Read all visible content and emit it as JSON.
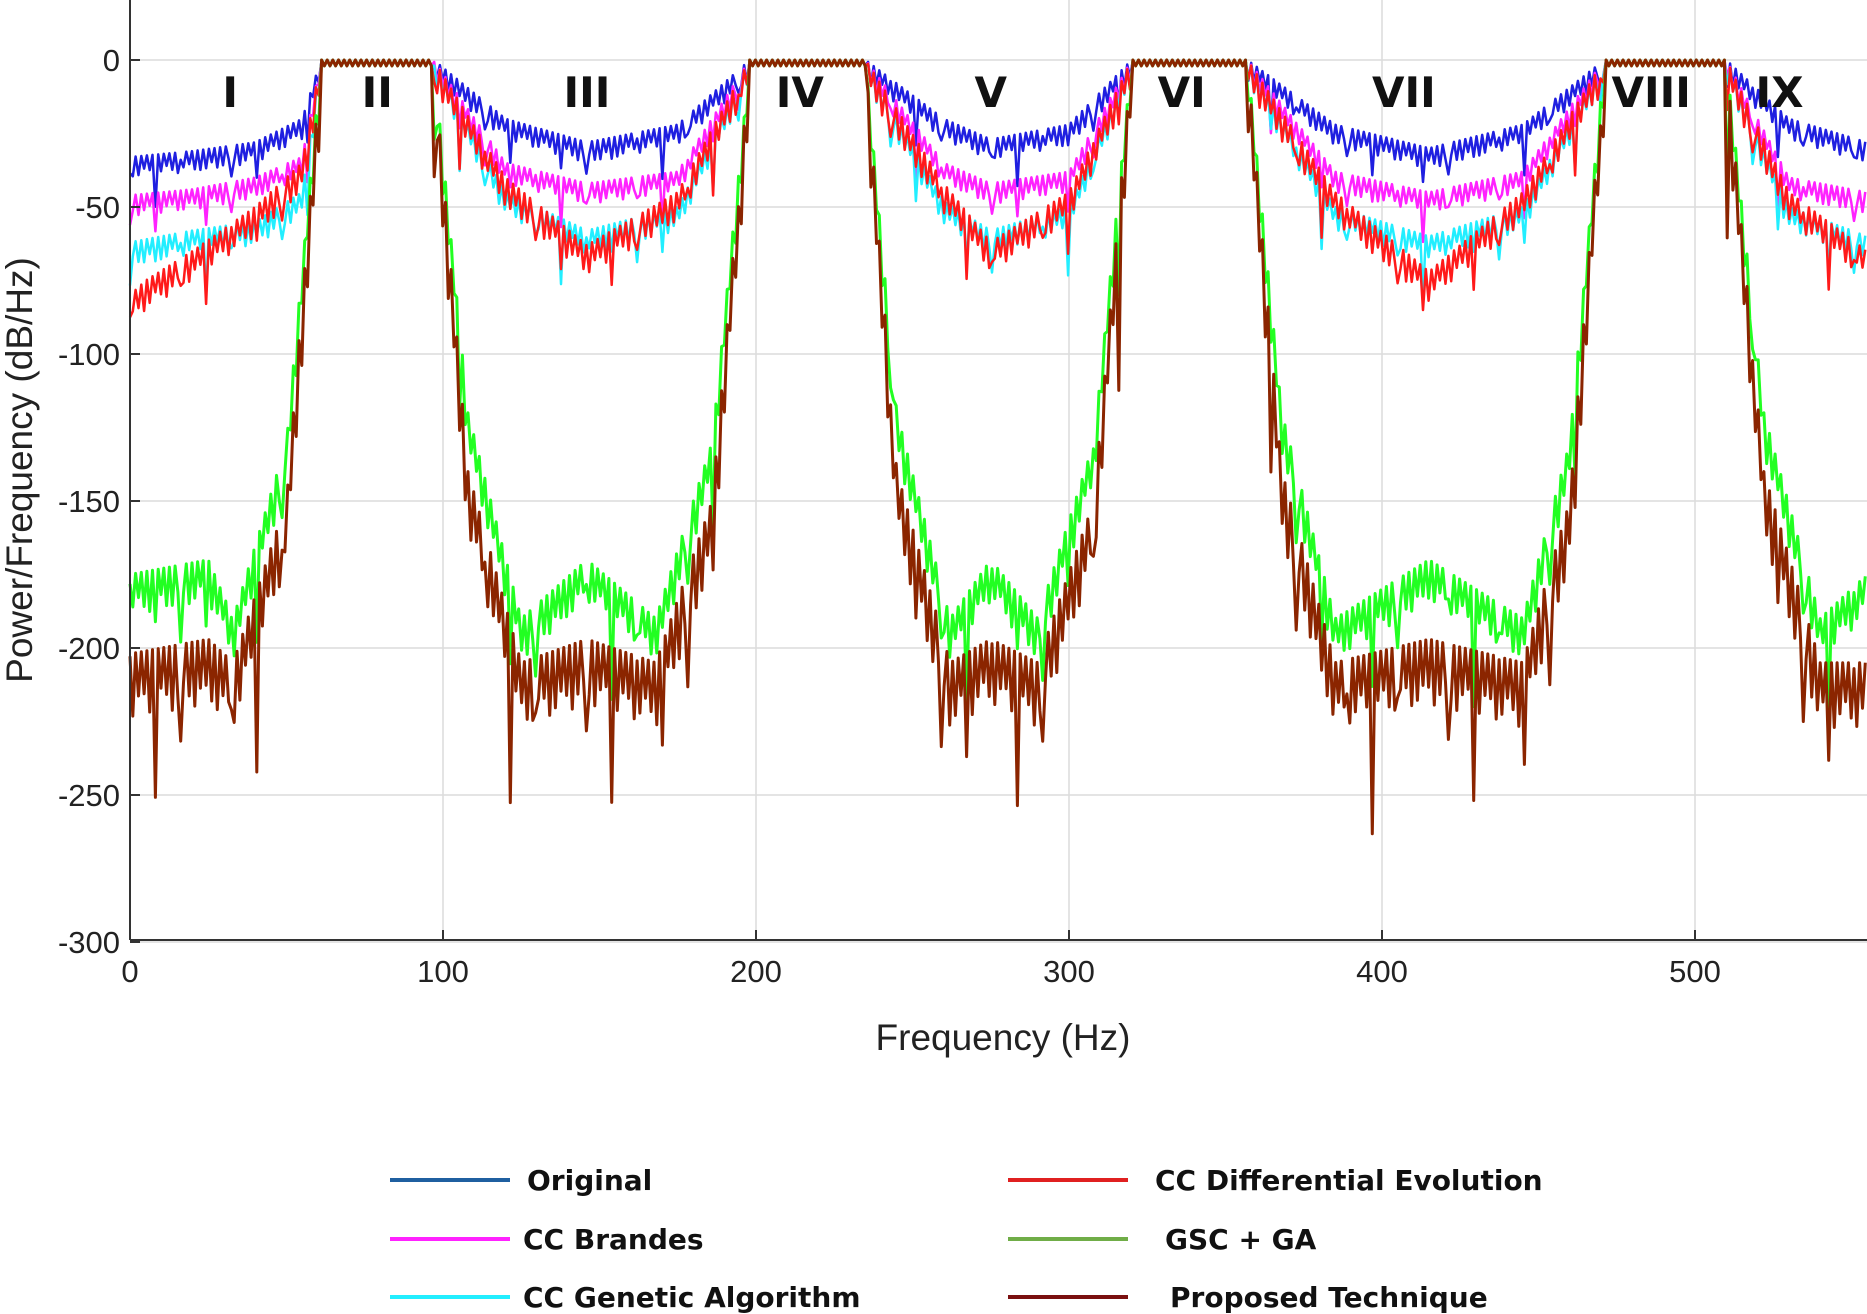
{
  "chart_data": {
    "type": "line",
    "title": "",
    "xlabel": "Frequency (Hz)",
    "ylabel": "Power/Frequency (dB/Hz)",
    "xlim": [
      0,
      555
    ],
    "ylim": [
      -300,
      20
    ],
    "xticks": [
      0,
      100,
      200,
      300,
      400,
      500
    ],
    "yticks": [
      0,
      -50,
      -100,
      -150,
      -200,
      -250,
      -300
    ],
    "grid": true,
    "bands": [
      {
        "label": "I",
        "center": 32
      },
      {
        "label": "II",
        "center": 79
      },
      {
        "label": "III",
        "center": 146
      },
      {
        "label": "IV",
        "center": 214
      },
      {
        "label": "V",
        "center": 275
      },
      {
        "label": "VI",
        "center": 336
      },
      {
        "label": "VII",
        "center": 407
      },
      {
        "label": "VIII",
        "center": 486
      },
      {
        "label": "IX",
        "center": 527
      }
    ],
    "passbands": [
      [
        61,
        97
      ],
      [
        198,
        235
      ],
      [
        320,
        357
      ],
      [
        471,
        510
      ]
    ],
    "series": [
      {
        "name": "Original",
        "color": "#1f1fe0",
        "legend_color": "#1f5fa0",
        "x": [
          0,
          20,
          40,
          55,
          61,
          97,
          120,
          146,
          175,
          198,
          235,
          260,
          275,
          300,
          320,
          357,
          385,
          415,
          445,
          471,
          510,
          530,
          555
        ],
        "y": [
          -33,
          -31,
          -28,
          -20,
          0,
          0,
          -20,
          -28,
          -22,
          0,
          0,
          -20,
          -27,
          -22,
          0,
          0,
          -22,
          -30,
          -22,
          0,
          0,
          -20,
          -28
        ]
      },
      {
        "name": "CC Brandes",
        "color": "#ff22ff",
        "legend_color": "#ff22ff",
        "x": [
          0,
          20,
          40,
          55,
          61,
          97,
          120,
          146,
          175,
          198,
          235,
          260,
          275,
          300,
          320,
          357,
          385,
          415,
          445,
          471,
          510,
          530,
          555
        ],
        "y": [
          -46,
          -44,
          -40,
          -33,
          0,
          0,
          -35,
          -42,
          -38,
          0,
          0,
          -35,
          -42,
          -38,
          0,
          0,
          -38,
          -45,
          -38,
          0,
          0,
          -40,
          -45
        ]
      },
      {
        "name": "CC Genetic Algorithm",
        "color": "#22eeff",
        "legend_color": "#22eeff",
        "x": [
          0,
          20,
          40,
          55,
          61,
          97,
          120,
          146,
          175,
          198,
          235,
          260,
          275,
          300,
          320,
          357,
          385,
          415,
          445,
          471,
          510,
          530,
          555
        ],
        "y": [
          -62,
          -58,
          -55,
          -45,
          0,
          0,
          -45,
          -58,
          -50,
          0,
          0,
          -48,
          -58,
          -50,
          0,
          0,
          -50,
          -60,
          -50,
          0,
          0,
          -50,
          -60
        ]
      },
      {
        "name": "CC Differential Evolution",
        "color": "#ff1a1a",
        "legend_color": "#e02020",
        "x": [
          0,
          5,
          20,
          40,
          55,
          61,
          97,
          120,
          146,
          175,
          198,
          235,
          260,
          275,
          300,
          320,
          357,
          385,
          415,
          445,
          471,
          510,
          530,
          555
        ],
        "y": [
          -80,
          -75,
          -65,
          -50,
          -35,
          0,
          0,
          -40,
          -63,
          -45,
          0,
          0,
          -42,
          -62,
          -45,
          0,
          0,
          -45,
          -72,
          -45,
          0,
          0,
          -45,
          -65
        ]
      },
      {
        "name": "GSC + GA",
        "color": "#22ff22",
        "legend_color": "#70ad47",
        "x": [
          0,
          25,
          33,
          50,
          61,
          97,
          108,
          125,
          146,
          168,
          186,
          198,
          235,
          245,
          262,
          275,
          290,
          308,
          320,
          357,
          368,
          385,
          415,
          445,
          460,
          471,
          510,
          522,
          540,
          555
        ],
        "y": [
          -175,
          -170,
          -190,
          -130,
          0,
          0,
          -120,
          -190,
          -170,
          -190,
          -130,
          0,
          0,
          -120,
          -190,
          -170,
          -190,
          -130,
          0,
          0,
          -120,
          -190,
          -170,
          -190,
          -130,
          0,
          0,
          -120,
          -190,
          -175
        ]
      },
      {
        "name": "Proposed Technique",
        "color": "#8b2500",
        "legend_color": "#7a1010",
        "x": [
          0,
          25,
          33,
          50,
          61,
          97,
          108,
          125,
          146,
          168,
          186,
          198,
          235,
          245,
          262,
          275,
          290,
          308,
          320,
          357,
          368,
          385,
          415,
          445,
          460,
          471,
          510,
          522,
          540,
          555
        ],
        "y": [
          -202,
          -197,
          -205,
          -150,
          0,
          0,
          -140,
          -205,
          -197,
          -205,
          -150,
          0,
          0,
          -140,
          -205,
          -197,
          -205,
          -150,
          0,
          0,
          -140,
          -205,
          -197,
          -205,
          -150,
          0,
          0,
          -140,
          -205,
          -205
        ]
      }
    ]
  }
}
